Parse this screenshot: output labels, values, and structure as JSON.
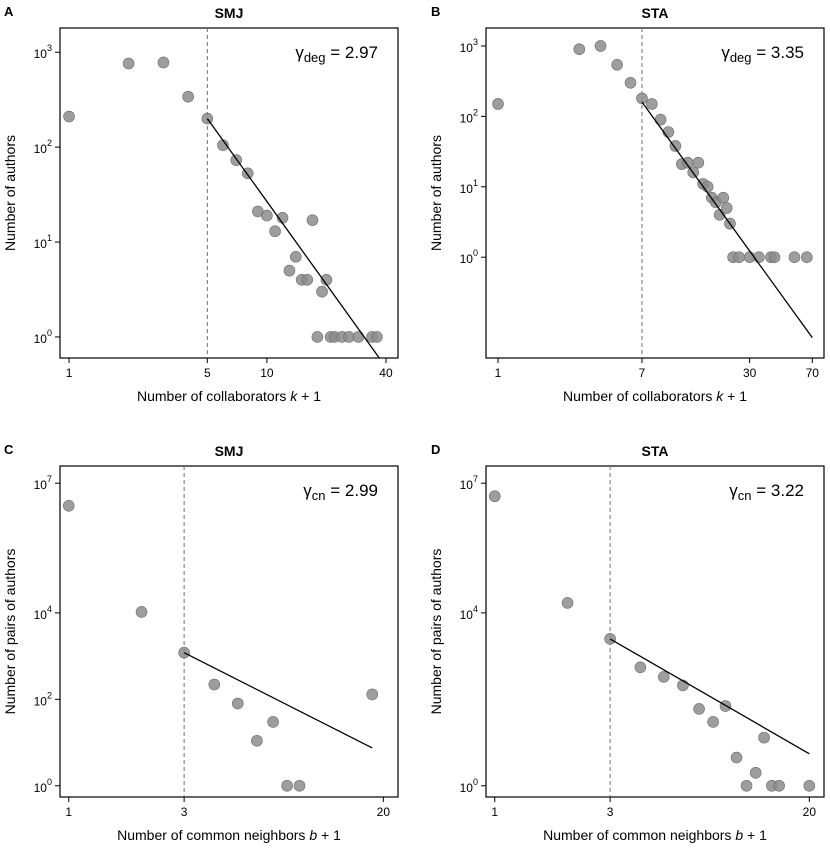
{
  "figure": {
    "panel_labels": [
      "A",
      "B",
      "C",
      "D"
    ]
  },
  "colors": {
    "point_fill": "#8c8c8c",
    "point_stroke": "#6e6e6e",
    "fit_line": "#000000",
    "cutoff_line": "#707070",
    "axis": "#000000"
  },
  "chart_data": [
    {
      "panel": "A",
      "type": "scatter",
      "title": "SMJ",
      "xlabel_prefix": "Number of collaborators ",
      "xlabel_var": "k",
      "xlabel_suffix": " + 1",
      "ylabel": "Number of authors",
      "xscale": "log",
      "yscale": "log",
      "xlim": [
        0.9,
        46
      ],
      "ylim": [
        0.6,
        1800
      ],
      "xticks": [
        1,
        5,
        10,
        40
      ],
      "xtick_labels": [
        "1",
        "5",
        "10",
        "40"
      ],
      "yticks": [
        1,
        10,
        100,
        1000
      ],
      "ytick_labels": [
        "10",
        "10",
        "10",
        "10"
      ],
      "ytick_exponents": [
        "0",
        "1",
        "2",
        "3"
      ],
      "cutoff": 5,
      "gamma_symbol": "γ",
      "gamma_subscript": "deg",
      "gamma_eq": " = 2.97",
      "annotation_position": "top-right",
      "points": [
        [
          1,
          210
        ],
        [
          2,
          760
        ],
        [
          3,
          780
        ],
        [
          4,
          340
        ],
        [
          5,
          200
        ],
        [
          6,
          105
        ],
        [
          7,
          73
        ],
        [
          8,
          53
        ],
        [
          9,
          21
        ],
        [
          10,
          19
        ],
        [
          11,
          13
        ],
        [
          12,
          18
        ],
        [
          13,
          5
        ],
        [
          14,
          7
        ],
        [
          15,
          4
        ],
        [
          16,
          4
        ],
        [
          17,
          17
        ],
        [
          18,
          1
        ],
        [
          19,
          3
        ],
        [
          20,
          4
        ],
        [
          21,
          1
        ],
        [
          22,
          1
        ],
        [
          24,
          1
        ],
        [
          26,
          1
        ],
        [
          29,
          1
        ],
        [
          34,
          1
        ],
        [
          36,
          1
        ]
      ],
      "fit": [
        [
          5,
          200
        ],
        [
          37,
          0.6
        ]
      ]
    },
    {
      "panel": "B",
      "type": "scatter",
      "title": "STA",
      "xlabel_prefix": "Number of collaborators ",
      "xlabel_var": "k",
      "xlabel_suffix": " + 1",
      "ylabel": "Number of authors",
      "xscale": "log",
      "yscale": "log",
      "xlim": [
        0.85,
        82
      ],
      "ylim": [
        0.037,
        1800
      ],
      "xticks": [
        1,
        7,
        30,
        70
      ],
      "xtick_labels": [
        "1",
        "7",
        "30",
        "70"
      ],
      "yticks": [
        1,
        10,
        100,
        1000
      ],
      "ytick_labels": [
        "10",
        "10",
        "10",
        "10"
      ],
      "ytick_exponents": [
        "0",
        "1",
        "2",
        "3"
      ],
      "cutoff": 7,
      "gamma_symbol": "γ",
      "gamma_subscript": "deg",
      "gamma_eq": " = 3.35",
      "annotation_position": "top-right",
      "points": [
        [
          1,
          150
        ],
        [
          3,
          900
        ],
        [
          4,
          1000
        ],
        [
          5,
          540
        ],
        [
          6,
          300
        ],
        [
          7,
          180
        ],
        [
          8,
          150
        ],
        [
          9,
          90
        ],
        [
          10,
          60
        ],
        [
          11,
          38
        ],
        [
          12,
          21
        ],
        [
          13,
          22
        ],
        [
          14,
          16
        ],
        [
          15,
          22
        ],
        [
          16,
          11
        ],
        [
          17,
          10
        ],
        [
          18,
          7
        ],
        [
          19,
          6
        ],
        [
          20,
          4
        ],
        [
          21,
          7
        ],
        [
          22,
          5
        ],
        [
          23,
          3
        ],
        [
          24,
          1
        ],
        [
          26,
          1
        ],
        [
          30,
          1
        ],
        [
          34,
          1
        ],
        [
          40,
          1
        ],
        [
          42,
          1
        ],
        [
          55,
          1
        ],
        [
          65,
          1
        ]
      ],
      "fit": [
        [
          7,
          160
        ],
        [
          70,
          0.072
        ]
      ]
    },
    {
      "panel": "C",
      "type": "scatter",
      "title": "SMJ",
      "xlabel_prefix": "Number of common neighbors ",
      "xlabel_var": "b",
      "xlabel_suffix": " + 1",
      "ylabel": "Number of pairs of authors",
      "xscale": "log",
      "yscale": "log",
      "xlim": [
        0.92,
        23
      ],
      "ylim": [
        0.55,
        25000000.0
      ],
      "xticks": [
        1,
        3,
        20
      ],
      "xtick_labels": [
        "1",
        "3",
        "20"
      ],
      "yticks": [
        1,
        100,
        10000,
        10000000
      ],
      "ytick_labels": [
        "10",
        "10",
        "10",
        "10"
      ],
      "ytick_exponents": [
        "0",
        "2",
        "4",
        "7"
      ],
      "cutoff": 3,
      "gamma_symbol": "γ",
      "gamma_subscript": "cn",
      "gamma_eq": " = 2.99",
      "annotation_position": "top-right",
      "points": [
        [
          1,
          3000000
        ],
        [
          2,
          10500
        ],
        [
          3,
          1200
        ],
        [
          4,
          220
        ],
        [
          5,
          80
        ],
        [
          6,
          11
        ],
        [
          7,
          30
        ],
        [
          8,
          1
        ],
        [
          9,
          1
        ],
        [
          18,
          130
        ]
      ],
      "fit": [
        [
          3,
          1200
        ],
        [
          18,
          7.5
        ]
      ]
    },
    {
      "panel": "D",
      "type": "scatter",
      "title": "STA",
      "xlabel_prefix": "Number of common neighbors ",
      "xlabel_var": "b",
      "xlabel_suffix": " + 1",
      "ylabel": "Number of pairs of authors",
      "xscale": "log",
      "yscale": "log",
      "xlim": [
        0.92,
        23
      ],
      "ylim": [
        0.55,
        25000000.0
      ],
      "xticks": [
        1,
        3,
        20
      ],
      "xtick_labels": [
        "1",
        "3",
        "20"
      ],
      "yticks": [
        1,
        10000,
        10000000
      ],
      "ytick_labels": [
        "10",
        "10",
        "10"
      ],
      "ytick_exponents": [
        "0",
        "4",
        "7"
      ],
      "cutoff": 3,
      "gamma_symbol": "γ",
      "gamma_subscript": "cn",
      "gamma_eq": " = 3.22",
      "annotation_position": "top-right",
      "points": [
        [
          1,
          5000000
        ],
        [
          2,
          17000
        ],
        [
          3,
          2500
        ],
        [
          4,
          550
        ],
        [
          5,
          330
        ],
        [
          6,
          210
        ],
        [
          7,
          60
        ],
        [
          8,
          30
        ],
        [
          9,
          70
        ],
        [
          10,
          4.5
        ],
        [
          11,
          1
        ],
        [
          12,
          2
        ],
        [
          13,
          13
        ],
        [
          14,
          1
        ],
        [
          15,
          1
        ],
        [
          20,
          1
        ]
      ],
      "fit": [
        [
          3,
          2500
        ],
        [
          20,
          5.5
        ]
      ]
    }
  ]
}
